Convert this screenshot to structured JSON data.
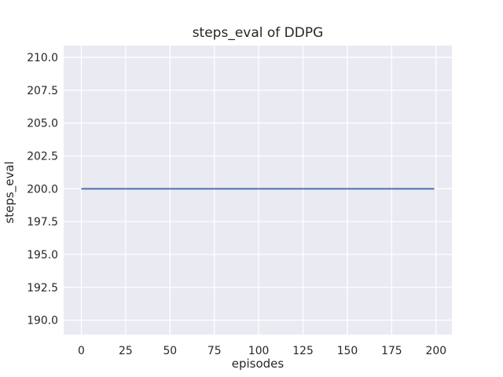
{
  "colors": {
    "figure_bg": "#ffffff",
    "axes_bg": "#eaeaf2",
    "grid": "#ffffff",
    "text": "#262626",
    "line": "#4c72b0"
  },
  "chart_data": {
    "type": "line",
    "title": "steps_eval of DDPG",
    "xlabel": "episodes",
    "ylabel": "steps_eval",
    "xlim": [
      -9.95,
      208.95
    ],
    "ylim": [
      188.9,
      210.9
    ],
    "xticks": [
      0,
      25,
      50,
      75,
      100,
      125,
      150,
      175,
      200
    ],
    "xtick_labels": [
      "0",
      "25",
      "50",
      "75",
      "100",
      "125",
      "150",
      "175",
      "200"
    ],
    "yticks": [
      190,
      192.5,
      195,
      197.5,
      200,
      202.5,
      205,
      207.5,
      210
    ],
    "ytick_labels": [
      "190.0",
      "192.5",
      "195.0",
      "197.5",
      "200.0",
      "202.5",
      "205.0",
      "207.5",
      "210.0"
    ],
    "grid": true,
    "legend": null,
    "series": [
      {
        "name": "DDPG",
        "x": [
          0,
          199
        ],
        "y": [
          200,
          200
        ],
        "color": "#4c72b0"
      }
    ]
  }
}
